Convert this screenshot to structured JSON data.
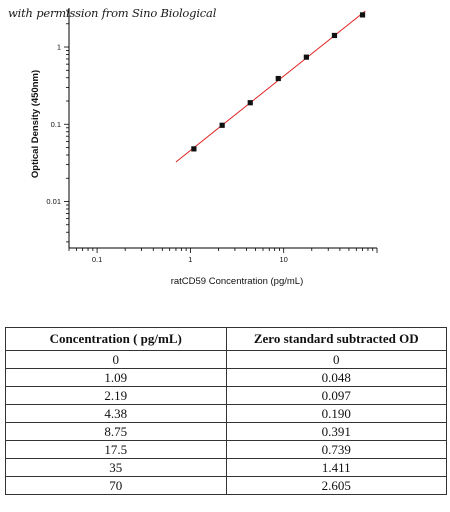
{
  "watermark": "with permission from Sino Biological",
  "chart_data": {
    "type": "scatter",
    "xscale": "log",
    "yscale": "log",
    "xlabel": "ratCD59 Concentration (pg/mL)",
    "ylabel": "Optical Density (450nm)",
    "xlim": [
      0.05,
      100
    ],
    "ylim": [
      0.0025,
      3.2
    ],
    "xticks": [
      {
        "value": 0.1,
        "label": "0.1"
      },
      {
        "value": 1,
        "label": "1"
      },
      {
        "value": 10,
        "label": "10"
      }
    ],
    "yticks": [
      {
        "value": 0.01,
        "label": "0.01"
      },
      {
        "value": 0.1,
        "label": "0.1"
      },
      {
        "value": 1,
        "label": "1"
      }
    ],
    "points": [
      {
        "x": 1.09,
        "y": 0.048
      },
      {
        "x": 2.19,
        "y": 0.097
      },
      {
        "x": 4.38,
        "y": 0.19
      },
      {
        "x": 8.75,
        "y": 0.391
      },
      {
        "x": 17.5,
        "y": 0.739
      },
      {
        "x": 35,
        "y": 1.411
      },
      {
        "x": 70,
        "y": 2.605
      }
    ],
    "fit_line": {
      "x_start": 0.7,
      "x_end": 75,
      "color": "#dd2222"
    },
    "point_color": "#111111",
    "grid": false
  },
  "table": {
    "headers": [
      "Concentration ( pg/mL)",
      "Zero standard subtracted OD"
    ],
    "rows": [
      [
        "0",
        "0"
      ],
      [
        "1.09",
        "0.048"
      ],
      [
        "2.19",
        "0.097"
      ],
      [
        "4.38",
        "0.190"
      ],
      [
        "8.75",
        "0.391"
      ],
      [
        "17.5",
        "0.739"
      ],
      [
        "35",
        "1.411"
      ],
      [
        "70",
        "2.605"
      ]
    ]
  }
}
